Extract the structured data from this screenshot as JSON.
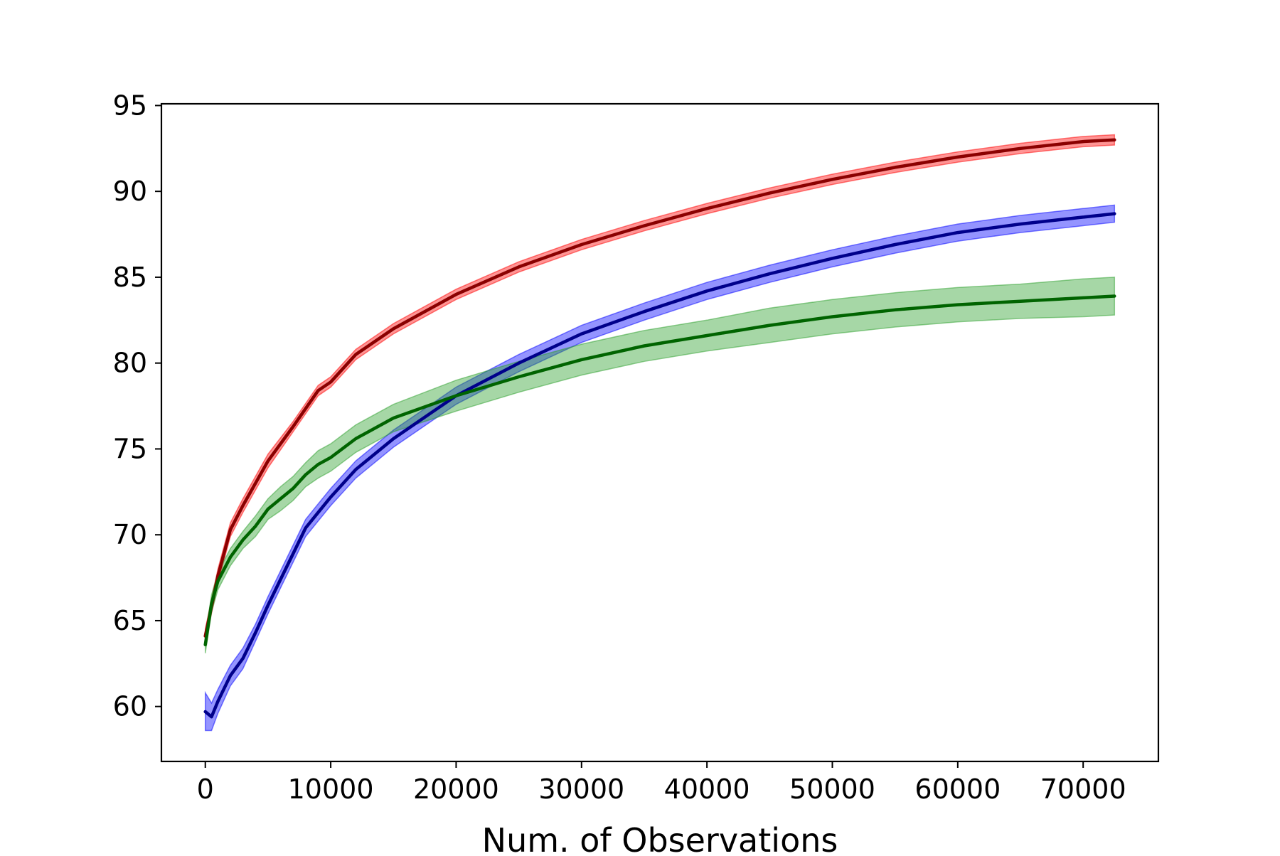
{
  "chart_data": {
    "type": "line",
    "title": "",
    "xlabel": "Num. of Observations",
    "ylabel": "",
    "xlim": [
      -3500,
      76000
    ],
    "ylim": [
      56.8,
      95.1
    ],
    "x_ticks": [
      0,
      10000,
      20000,
      30000,
      40000,
      50000,
      60000,
      70000
    ],
    "y_ticks": [
      60,
      65,
      70,
      75,
      80,
      85,
      90,
      95
    ],
    "grid": false,
    "legend": "none",
    "series": [
      {
        "color": "#8b0000",
        "band_color": "#ff0000",
        "x": [
          0,
          1000,
          2000,
          3000,
          5000,
          7000,
          9000,
          10000,
          12000,
          15000,
          20000,
          25000,
          30000,
          35000,
          40000,
          45000,
          50000,
          55000,
          60000,
          65000,
          70000,
          72500
        ],
        "values": [
          64.1,
          67.6,
          70.3,
          71.7,
          74.3,
          76.3,
          78.4,
          78.9,
          80.5,
          82.0,
          84.0,
          85.6,
          86.9,
          88.0,
          89.0,
          89.9,
          90.7,
          91.4,
          92.0,
          92.5,
          92.9,
          93.0
        ],
        "band": [
          0.4,
          0.4,
          0.4,
          0.4,
          0.4,
          0.3,
          0.3,
          0.3,
          0.3,
          0.3,
          0.3,
          0.3,
          0.3,
          0.3,
          0.3,
          0.3,
          0.3,
          0.3,
          0.3,
          0.3,
          0.3,
          0.3
        ]
      },
      {
        "color": "#00008b",
        "band_color": "#0000ff",
        "x": [
          0,
          500,
          1000,
          2000,
          3000,
          4000,
          5000,
          6000,
          7000,
          8000,
          9000,
          10000,
          12000,
          15000,
          18000,
          20000,
          25000,
          30000,
          35000,
          40000,
          45000,
          50000,
          55000,
          60000,
          65000,
          70000,
          72500
        ],
        "values": [
          59.7,
          59.4,
          60.3,
          61.8,
          62.8,
          64.3,
          65.9,
          67.4,
          68.9,
          70.4,
          71.3,
          72.2,
          73.8,
          75.6,
          77.1,
          78.1,
          80.0,
          81.7,
          83.0,
          84.2,
          85.2,
          86.1,
          86.9,
          87.6,
          88.1,
          88.5,
          88.7
        ],
        "band": [
          1.1,
          0.8,
          0.7,
          0.6,
          0.6,
          0.5,
          0.5,
          0.5,
          0.5,
          0.5,
          0.5,
          0.5,
          0.5,
          0.5,
          0.5,
          0.5,
          0.5,
          0.5,
          0.5,
          0.5,
          0.5,
          0.5,
          0.5,
          0.5,
          0.5,
          0.5,
          0.5
        ]
      },
      {
        "color": "#006400",
        "band_color": "#2ca02c",
        "x": [
          0,
          500,
          1000,
          2000,
          3000,
          4000,
          5000,
          6000,
          7000,
          8000,
          9000,
          10000,
          12000,
          15000,
          20000,
          25000,
          30000,
          35000,
          40000,
          45000,
          50000,
          55000,
          60000,
          65000,
          70000,
          72500
        ],
        "values": [
          63.6,
          66.0,
          67.3,
          68.7,
          69.7,
          70.5,
          71.5,
          72.1,
          72.7,
          73.5,
          74.1,
          74.5,
          75.6,
          76.8,
          78.1,
          79.2,
          80.2,
          81.0,
          81.6,
          82.2,
          82.7,
          83.1,
          83.4,
          83.6,
          83.8,
          83.9
        ],
        "band": [
          0.5,
          0.5,
          0.5,
          0.5,
          0.5,
          0.6,
          0.6,
          0.7,
          0.7,
          0.7,
          0.8,
          0.8,
          0.8,
          0.8,
          0.9,
          0.9,
          0.9,
          0.9,
          0.9,
          1.0,
          1.0,
          1.0,
          1.0,
          1.0,
          1.1,
          1.1
        ]
      }
    ]
  }
}
